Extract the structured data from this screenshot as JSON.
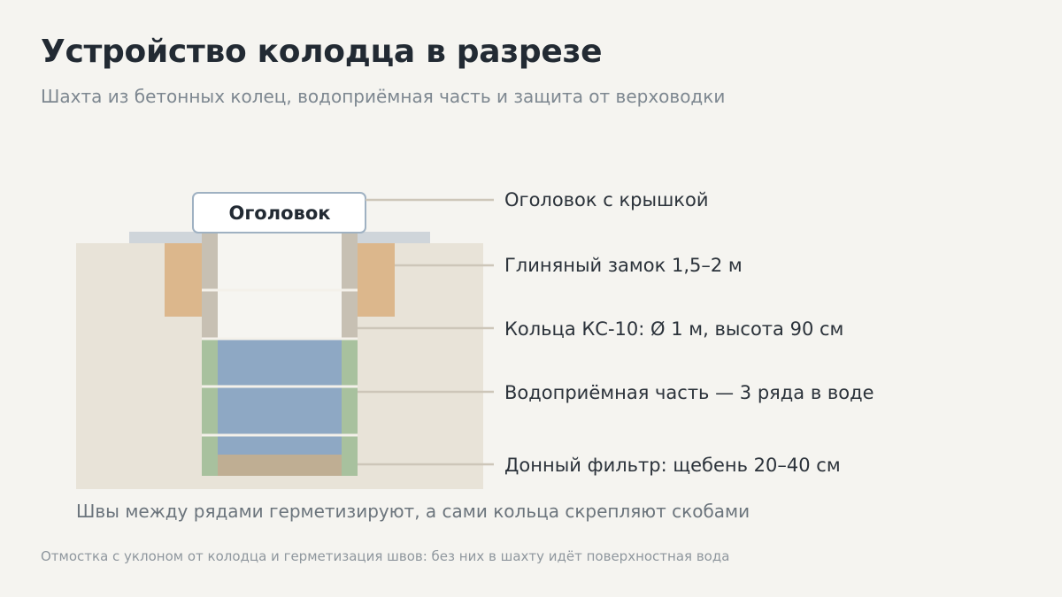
{
  "header": {
    "title": "Устройство колодца в разрезе",
    "subtitle": "Шахта из бетонных колец, водоприёмная часть и защита от верховодки"
  },
  "diagram": {
    "head_box_label": "Оголовок",
    "callouts": [
      "Оголовок с крышкой",
      "Глиняный замок 1,5–2 м",
      "Кольца КС-10: Ø 1 м, высота 90 см",
      "Водоприёмная часть — 3 ряда в воде",
      "Донный фильтр: щебень 20–40 см"
    ],
    "caption": "Швы между рядами герметизируют, а сами кольца скрепляют скобами"
  },
  "footer": {
    "note": "Отмостка с уклоном от колодца и герметизация швов: без них в шахту идёт поверхностная вода"
  },
  "colors": {
    "background": "#f5f4f0",
    "ground": "#e8e3d8",
    "clay": "#dcb78c",
    "ring_wall_dry": "#c7c0b3",
    "ring_wall_wet": "#a8c19e",
    "water": "#8ea8c4",
    "gravel": "#bfae93",
    "blind_area": "#cfd5da",
    "leader_line": "#cdc6b9"
  }
}
